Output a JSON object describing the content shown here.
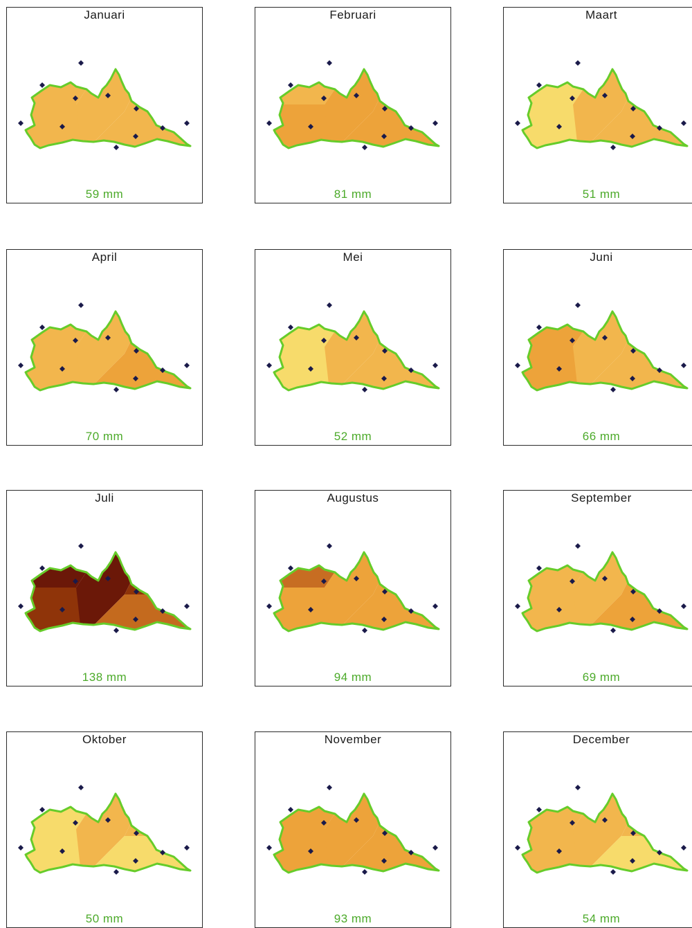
{
  "months": [
    {
      "label": "Januari",
      "value": "59 mm",
      "zones": {
        "nw": "#f2b64d",
        "w": "#f2b64d",
        "c": "#f2b64d",
        "ne": "#f2b64d",
        "e": "#f2b64d"
      }
    },
    {
      "label": "Februari",
      "value": "81 mm",
      "zones": {
        "nw": "#f2b64d",
        "w": "#eda33a",
        "c": "#eda33a",
        "ne": "#eda33a",
        "e": "#eda33a"
      }
    },
    {
      "label": "Maart",
      "value": "51 mm",
      "zones": {
        "nw": "#f7db6b",
        "w": "#f7db6b",
        "c": "#f2b64d",
        "ne": "#f2b64d",
        "e": "#f2b64d"
      }
    },
    {
      "label": "April",
      "value": "70 mm",
      "zones": {
        "nw": "#f2b64d",
        "w": "#f2b64d",
        "c": "#f2b64d",
        "ne": "#eda33a",
        "e": "#eda33a"
      }
    },
    {
      "label": "Mei",
      "value": "52 mm",
      "zones": {
        "nw": "#f7db6b",
        "w": "#f7db6b",
        "c": "#f2b64d",
        "ne": "#f2b64d",
        "e": "#f2b64d"
      }
    },
    {
      "label": "Juni",
      "value": "66 mm",
      "zones": {
        "nw": "#eda33a",
        "w": "#eda33a",
        "c": "#f2b64d",
        "ne": "#f2b64d",
        "e": "#f2b64d"
      }
    },
    {
      "label": "Juli",
      "value": "138 mm",
      "zones": {
        "nw": "#6b1808",
        "w": "#8f3409",
        "c": "#6b1808",
        "ne": "#8f3409",
        "e": "#c46a1e"
      }
    },
    {
      "label": "Augustus",
      "value": "94 mm",
      "zones": {
        "nw": "#c76d22",
        "w": "#eda33a",
        "c": "#eda33a",
        "ne": "#eda33a",
        "e": "#eda33a"
      }
    },
    {
      "label": "September",
      "value": "69 mm",
      "zones": {
        "nw": "#f2b64d",
        "w": "#f2b64d",
        "c": "#f2b64d",
        "ne": "#eda33a",
        "e": "#eda33a"
      }
    },
    {
      "label": "Oktober",
      "value": "50 mm",
      "zones": {
        "nw": "#f7db6b",
        "w": "#f7db6b",
        "c": "#f2b64d",
        "ne": "#f2b64d",
        "e": "#f7db6b"
      }
    },
    {
      "label": "November",
      "value": "93 mm",
      "zones": {
        "nw": "#eda33a",
        "w": "#eda33a",
        "c": "#eda33a",
        "ne": "#eda33a",
        "e": "#eda33a"
      }
    },
    {
      "label": "December",
      "value": "54 mm",
      "zones": {
        "nw": "#f2b64d",
        "w": "#f2b64d",
        "c": "#f2b64d",
        "ne": "#f2b64d",
        "e": "#f7db6b"
      }
    }
  ],
  "colors": {
    "boundary": "#66cc2a",
    "station": "#1a1a4a",
    "value_text": "#4caa2a"
  }
}
